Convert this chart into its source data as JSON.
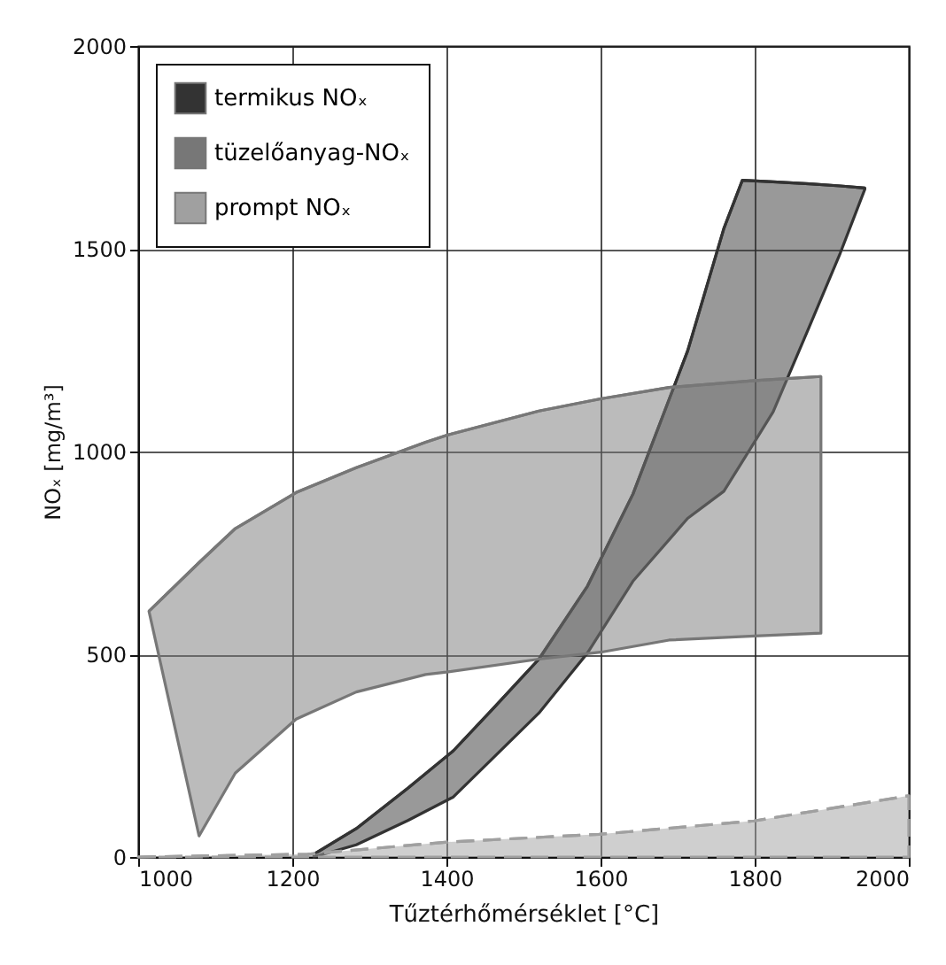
{
  "chart_data": {
    "type": "line",
    "xlabel": "Tűztérhőmérséklet [°C]",
    "ylabel": "NOₓ [mg/m³]",
    "xlim": [
      1000,
      2000
    ],
    "xticks": [
      1000,
      1200,
      1400,
      1600,
      1800,
      2000
    ],
    "ylim": [
      0,
      2000
    ],
    "yticks": [
      0,
      500,
      1000,
      1500,
      2000
    ],
    "grid": true,
    "legend": "top left",
    "series": [
      {
        "name": "termikus NOₓ",
        "color": "#333333",
        "x": [
          1228,
          1283,
          1350,
          1409,
          1460,
          1520,
          1583,
          1642,
          1713,
          1760,
          1784,
          1824,
          1871,
          1911,
          1943
        ],
        "values": [
          7,
          70,
          170,
          262,
          365,
          488,
          668,
          895,
          1248,
          1550,
          1669,
          1665,
          1660,
          1655,
          1650
        ],
        "upper": [
          7,
          70,
          170,
          262,
          365,
          488,
          668,
          895,
          1248,
          1550,
          1669,
          1665,
          1660,
          1655,
          1650
        ],
        "lower": [
          0,
          30,
          90,
          148,
          243,
          355,
          503,
          680,
          835,
          902,
          975,
          1098,
          1308,
          1489,
          1647
        ]
      },
      {
        "name": "tüzelőanyag-NOₓ",
        "color": "#777777",
        "x": [
          1014,
          1079,
          1126,
          1205,
          1283,
          1373,
          1400,
          1520,
          1600,
          1689,
          1800,
          1886
        ],
        "values": [
          606,
          726,
          810,
          899,
          960,
          1023,
          1040,
          1100,
          1130,
          1158,
          1175,
          1185
        ],
        "upper": [
          606,
          726,
          810,
          899,
          960,
          1023,
          1040,
          1100,
          1130,
          1158,
          1175,
          1185
        ],
        "lower": [
          606,
          52,
          207,
          340,
          407,
          450,
          456,
          488,
          505,
          535,
          545,
          552
        ]
      },
      {
        "name": "prompt NOₓ",
        "color": "#a0a0a0",
        "line_style": "dashed",
        "x": [
          1000,
          1220,
          1402,
          1598,
          1799,
          2000
        ],
        "values": [
          0,
          7,
          37,
          56,
          89,
          151
        ],
        "upper": [
          0,
          7,
          37,
          56,
          89,
          151
        ],
        "lower": [
          0,
          0,
          0,
          0,
          0,
          0
        ]
      }
    ]
  }
}
